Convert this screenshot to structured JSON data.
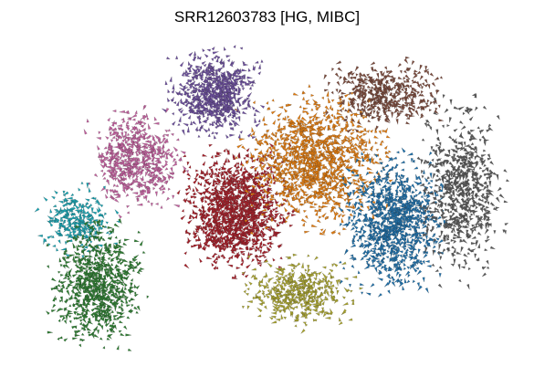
{
  "chart_data": {
    "type": "scatter",
    "title": "SRR12603783 [HG, MIBC]",
    "xlabel": "",
    "ylabel": "",
    "axes_visible": false,
    "grid": false,
    "legend": "none",
    "marker": "small arrow glyphs (velocity arrows) on a 2D embedding",
    "series": [
      {
        "color": "#a6202a",
        "extent": {
          "x": [
            -0.5,
            0.2
          ],
          "y": [
            -0.4,
            0.3
          ]
        },
        "approx_points": 1300
      },
      {
        "color": "#e07b10",
        "extent": {
          "x": [
            0.0,
            0.9
          ],
          "y": [
            -0.1,
            0.7
          ]
        },
        "approx_points": 1200
      },
      {
        "color": "#1f6fa8",
        "extent": {
          "x": [
            0.75,
            1.4
          ],
          "y": [
            -0.5,
            0.25
          ]
        },
        "approx_points": 1000
      },
      {
        "color": "#5a5a5a",
        "extent": {
          "x": [
            1.3,
            1.85
          ],
          "y": [
            -0.4,
            0.6
          ]
        },
        "approx_points": 700
      },
      {
        "color": "#6b4e9c",
        "extent": {
          "x": [
            -0.6,
            0.0
          ],
          "y": [
            0.5,
            1.0
          ]
        },
        "approx_points": 700
      },
      {
        "color": "#c2609e",
        "extent": {
          "x": [
            -1.2,
            -0.6
          ],
          "y": [
            0.0,
            0.6
          ]
        },
        "approx_points": 600
      },
      {
        "color": "#1aa2b0",
        "extent": {
          "x": [
            -1.6,
            -1.1
          ],
          "y": [
            -0.3,
            0.1
          ]
        },
        "approx_points": 280
      },
      {
        "color": "#2e7d32",
        "extent": {
          "x": [
            -1.5,
            -0.9
          ],
          "y": [
            -0.9,
            -0.2
          ]
        },
        "approx_points": 800
      },
      {
        "color": "#a8a32e",
        "extent": {
          "x": [
            0.0,
            0.7
          ],
          "y": [
            -0.8,
            -0.4
          ]
        },
        "approx_points": 450
      },
      {
        "color": "#7a4a3c",
        "extent": {
          "x": [
            0.6,
            1.35
          ],
          "y": [
            0.55,
            0.95
          ]
        },
        "approx_points": 450
      }
    ]
  }
}
